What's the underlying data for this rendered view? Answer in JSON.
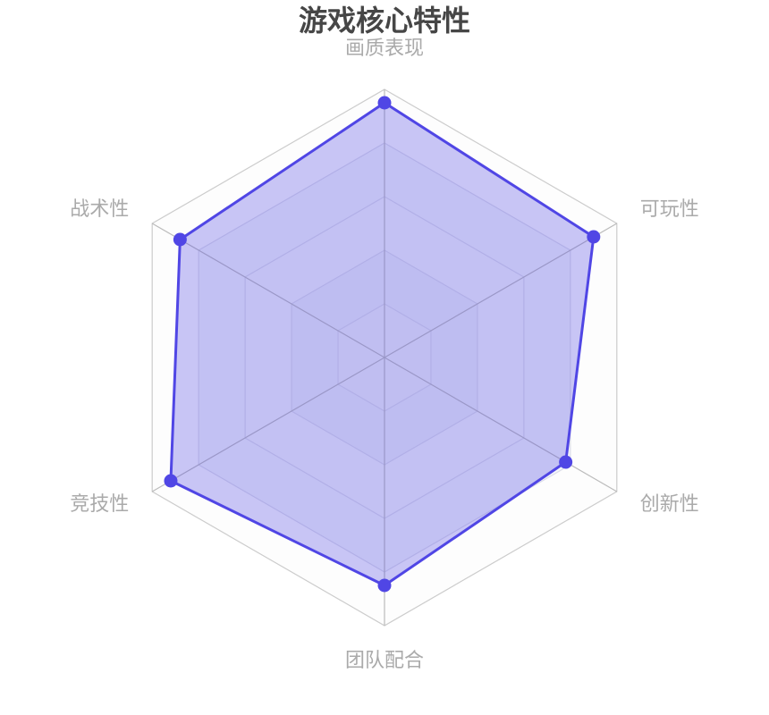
{
  "chart_data": {
    "type": "radar",
    "title": "游戏核心特性",
    "categories": [
      "画质表现",
      "可玩性",
      "创新性",
      "团队配合",
      "竞技性",
      "战术性"
    ],
    "values": [
      95,
      90,
      78,
      85,
      92,
      88
    ],
    "color": "#5046e5",
    "rlim": [
      0,
      100
    ],
    "rticks": [
      20,
      40,
      60,
      80,
      100
    ],
    "grid": true
  }
}
